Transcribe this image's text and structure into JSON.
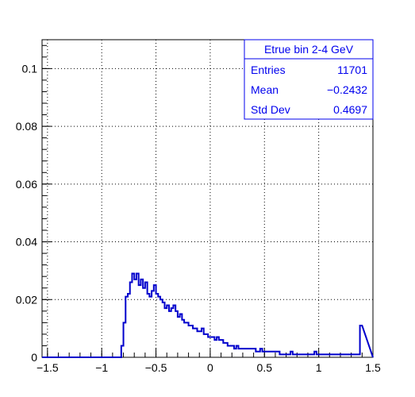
{
  "chart_data": {
    "type": "histogram",
    "title": "",
    "xlabel": "",
    "ylabel": "",
    "xlim": [
      -1.55,
      1.5
    ],
    "ylim": [
      0,
      0.11
    ],
    "grid": true,
    "x_ticks": [
      -1.5,
      -1,
      -0.5,
      0,
      0.5,
      1,
      1.5
    ],
    "x_tick_labels": [
      "−1.5",
      "−1",
      "−0.5",
      "0",
      "0.5",
      "1",
      "1.5"
    ],
    "y_ticks": [
      0,
      0.02,
      0.04,
      0.06,
      0.08,
      0.1
    ],
    "y_tick_labels": [
      "0",
      "0.02",
      "0.04",
      "0.06",
      "0.08",
      "0.1"
    ],
    "line_color": "#0000cc",
    "bin_width": 0.02,
    "bin_start": -0.82,
    "values": [
      0.004,
      0.012,
      0.021,
      0.022,
      0.026,
      0.029,
      0.027,
      0.029,
      0.025,
      0.027,
      0.024,
      0.026,
      0.022,
      0.021,
      0.023,
      0.025,
      0.022,
      0.021,
      0.02,
      0.019,
      0.017,
      0.018,
      0.016,
      0.017,
      0.018,
      0.016,
      0.014,
      0.015,
      0.013,
      0.012,
      0.012,
      0.011,
      0.011,
      0.01,
      0.01,
      0.009,
      0.009,
      0.01,
      0.008,
      0.008,
      0.007,
      0.007,
      0.007,
      0.006,
      0.007,
      0.006,
      0.006,
      0.005,
      0.005,
      0.004,
      0.004,
      0.004,
      0.003,
      0.004,
      0.003,
      0.003,
      0.003,
      0.003,
      0.003,
      0.003,
      0.003,
      0.003,
      0.002,
      0.002,
      0.003,
      0.002,
      0.002,
      0.002,
      0.002,
      0.002,
      0.002,
      0.002,
      0.002,
      0.001,
      0.001,
      0.001,
      0.001,
      0.001,
      0.002,
      0.001,
      0.001,
      0.001,
      0.001,
      0.001,
      0.001,
      0.001,
      0.001,
      0.001,
      0.001,
      0.002,
      0.001,
      0.001,
      0.001,
      0.001,
      0.001,
      0.001,
      0.001,
      0.001,
      0.001,
      0.001,
      0.001,
      0.001,
      0.001,
      0.001,
      0.001,
      0.001,
      0.001,
      0.001,
      0.001,
      0.001,
      0.011
    ]
  },
  "stats": {
    "title": "Etrue bin 2-4 GeV",
    "entries_label": "Entries",
    "entries_value": "11701",
    "mean_label": "Mean",
    "mean_value": "−0.2432",
    "stddev_label": "Std Dev",
    "stddev_value": "0.4697"
  }
}
